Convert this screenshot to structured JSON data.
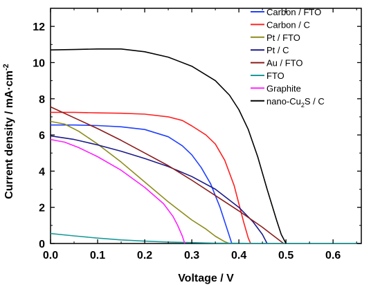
{
  "chart_data": {
    "type": "line",
    "xlabel": "Voltage / V",
    "ylabel_parts": [
      "Current density / mA·cm",
      "-2"
    ],
    "xlim": [
      0.0,
      0.66
    ],
    "ylim": [
      0,
      13
    ],
    "x_ticks": [
      "0.0",
      "0.1",
      "0.2",
      "0.3",
      "0.4",
      "0.5",
      "0.6"
    ],
    "y_ticks": [
      "0",
      "2",
      "4",
      "6",
      "8",
      "10",
      "12"
    ],
    "grid": false,
    "legend_position": "top-right",
    "series": [
      {
        "name": "Carbon / FTO",
        "color": "#1f3fff",
        "legend_parts": [
          "Carbon / FTO"
        ],
        "points": [
          [
            0.0,
            6.55
          ],
          [
            0.05,
            6.55
          ],
          [
            0.1,
            6.52
          ],
          [
            0.15,
            6.45
          ],
          [
            0.2,
            6.3
          ],
          [
            0.25,
            5.9
          ],
          [
            0.28,
            5.4
          ],
          [
            0.3,
            4.9
          ],
          [
            0.32,
            4.2
          ],
          [
            0.34,
            3.3
          ],
          [
            0.36,
            2.0
          ],
          [
            0.37,
            1.2
          ],
          [
            0.38,
            0.4
          ],
          [
            0.385,
            0.0
          ]
        ]
      },
      {
        "name": "Carbon / C",
        "color": "#ff2020",
        "legend_parts": [
          "Carbon / C"
        ],
        "points": [
          [
            0.0,
            7.25
          ],
          [
            0.05,
            7.25
          ],
          [
            0.1,
            7.22
          ],
          [
            0.15,
            7.2
          ],
          [
            0.2,
            7.15
          ],
          [
            0.25,
            7.0
          ],
          [
            0.28,
            6.8
          ],
          [
            0.3,
            6.5
          ],
          [
            0.33,
            6.0
          ],
          [
            0.35,
            5.5
          ],
          [
            0.37,
            4.6
          ],
          [
            0.39,
            3.2
          ],
          [
            0.4,
            2.2
          ],
          [
            0.41,
            1.2
          ],
          [
            0.42,
            0.3
          ],
          [
            0.425,
            0.0
          ]
        ]
      },
      {
        "name": "Pt / FTO",
        "color": "#8c8c1a",
        "legend_parts": [
          "Pt / FTO"
        ],
        "points": [
          [
            0.0,
            6.75
          ],
          [
            0.03,
            6.6
          ],
          [
            0.06,
            6.2
          ],
          [
            0.1,
            5.5
          ],
          [
            0.15,
            4.5
          ],
          [
            0.2,
            3.4
          ],
          [
            0.25,
            2.3
          ],
          [
            0.3,
            1.3
          ],
          [
            0.33,
            0.8
          ],
          [
            0.35,
            0.4
          ],
          [
            0.37,
            0.1
          ],
          [
            0.38,
            0.0
          ]
        ]
      },
      {
        "name": "Pt / C",
        "color": "#1a1a8c",
        "legend_parts": [
          "Pt / C"
        ],
        "points": [
          [
            0.0,
            5.95
          ],
          [
            0.05,
            5.75
          ],
          [
            0.1,
            5.45
          ],
          [
            0.15,
            5.1
          ],
          [
            0.2,
            4.7
          ],
          [
            0.25,
            4.25
          ],
          [
            0.3,
            3.7
          ],
          [
            0.35,
            3.0
          ],
          [
            0.4,
            2.0
          ],
          [
            0.43,
            1.2
          ],
          [
            0.45,
            0.5
          ],
          [
            0.46,
            0.0
          ]
        ]
      },
      {
        "name": "Au / FTO",
        "color": "#8b1a1a",
        "legend_parts": [
          "Au / FTO"
        ],
        "points": [
          [
            0.0,
            7.55
          ],
          [
            0.05,
            6.95
          ],
          [
            0.1,
            6.35
          ],
          [
            0.15,
            5.7
          ],
          [
            0.2,
            5.0
          ],
          [
            0.25,
            4.3
          ],
          [
            0.3,
            3.5
          ],
          [
            0.35,
            2.65
          ],
          [
            0.4,
            1.8
          ],
          [
            0.45,
            0.9
          ],
          [
            0.49,
            0.1
          ],
          [
            0.495,
            0.0
          ]
        ]
      },
      {
        "name": "FTO",
        "color": "#1a9a9a",
        "legend_parts": [
          "FTO"
        ],
        "points": [
          [
            0.0,
            0.55
          ],
          [
            0.05,
            0.42
          ],
          [
            0.1,
            0.3
          ],
          [
            0.15,
            0.2
          ],
          [
            0.2,
            0.13
          ],
          [
            0.25,
            0.08
          ],
          [
            0.3,
            0.05
          ],
          [
            0.35,
            0.02
          ],
          [
            0.4,
            0.01
          ],
          [
            0.45,
            0.0
          ],
          [
            0.55,
            0.0
          ],
          [
            0.66,
            0.0
          ]
        ]
      },
      {
        "name": "Graphite",
        "color": "#ff20ff",
        "legend_parts": [
          "Graphite"
        ],
        "points": [
          [
            0.0,
            5.75
          ],
          [
            0.03,
            5.6
          ],
          [
            0.06,
            5.3
          ],
          [
            0.1,
            4.8
          ],
          [
            0.15,
            4.05
          ],
          [
            0.2,
            3.1
          ],
          [
            0.24,
            2.2
          ],
          [
            0.26,
            1.5
          ],
          [
            0.27,
            1.0
          ],
          [
            0.28,
            0.4
          ],
          [
            0.285,
            0.0
          ]
        ]
      },
      {
        "name": "nano-Cu2S / C",
        "color": "#000000",
        "legend_parts": [
          "nano-Cu",
          "2",
          "S / C"
        ],
        "points": [
          [
            0.0,
            10.7
          ],
          [
            0.05,
            10.72
          ],
          [
            0.1,
            10.75
          ],
          [
            0.15,
            10.75
          ],
          [
            0.2,
            10.6
          ],
          [
            0.25,
            10.3
          ],
          [
            0.3,
            9.8
          ],
          [
            0.35,
            9.0
          ],
          [
            0.38,
            8.2
          ],
          [
            0.4,
            7.4
          ],
          [
            0.42,
            6.3
          ],
          [
            0.44,
            4.8
          ],
          [
            0.46,
            3.0
          ],
          [
            0.48,
            1.3
          ],
          [
            0.49,
            0.5
          ],
          [
            0.5,
            0.0
          ]
        ]
      }
    ]
  }
}
